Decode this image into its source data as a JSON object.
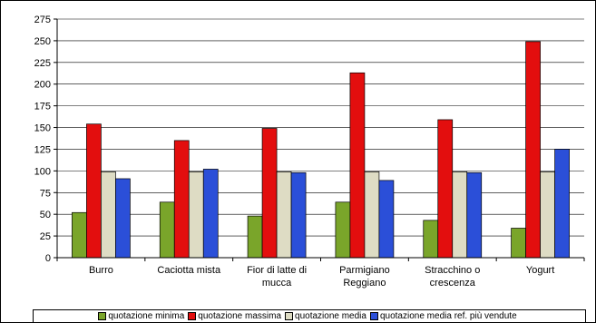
{
  "chart_data": {
    "type": "bar",
    "categories": [
      [
        "Burro"
      ],
      [
        "Caciotta mista"
      ],
      [
        "Fior di latte di",
        "mucca"
      ],
      [
        "Parmigiano",
        "Reggiano"
      ],
      [
        "Stracchino o",
        "crescenza"
      ],
      [
        "Yogurt"
      ]
    ],
    "series": [
      {
        "name": "quotazione minima",
        "color": "#7aa52a",
        "values": [
          52,
          64,
          48,
          64,
          43,
          34
        ]
      },
      {
        "name": "quotazione massima",
        "color": "#e30e0e",
        "values": [
          154,
          135,
          149,
          213,
          159,
          249
        ]
      },
      {
        "name": "quotazione media",
        "color": "#dedcc4",
        "values": [
          99,
          99,
          99,
          99,
          99,
          99
        ]
      },
      {
        "name": "quotazione media ref. più vendute",
        "color": "#2b4fd8",
        "values": [
          91,
          102,
          98,
          89,
          98,
          125
        ]
      }
    ],
    "ylim": [
      0,
      275
    ],
    "yticks": [
      0,
      25,
      50,
      75,
      100,
      125,
      150,
      175,
      200,
      225,
      250,
      275
    ],
    "grid": true,
    "legend_position": "bottom"
  }
}
